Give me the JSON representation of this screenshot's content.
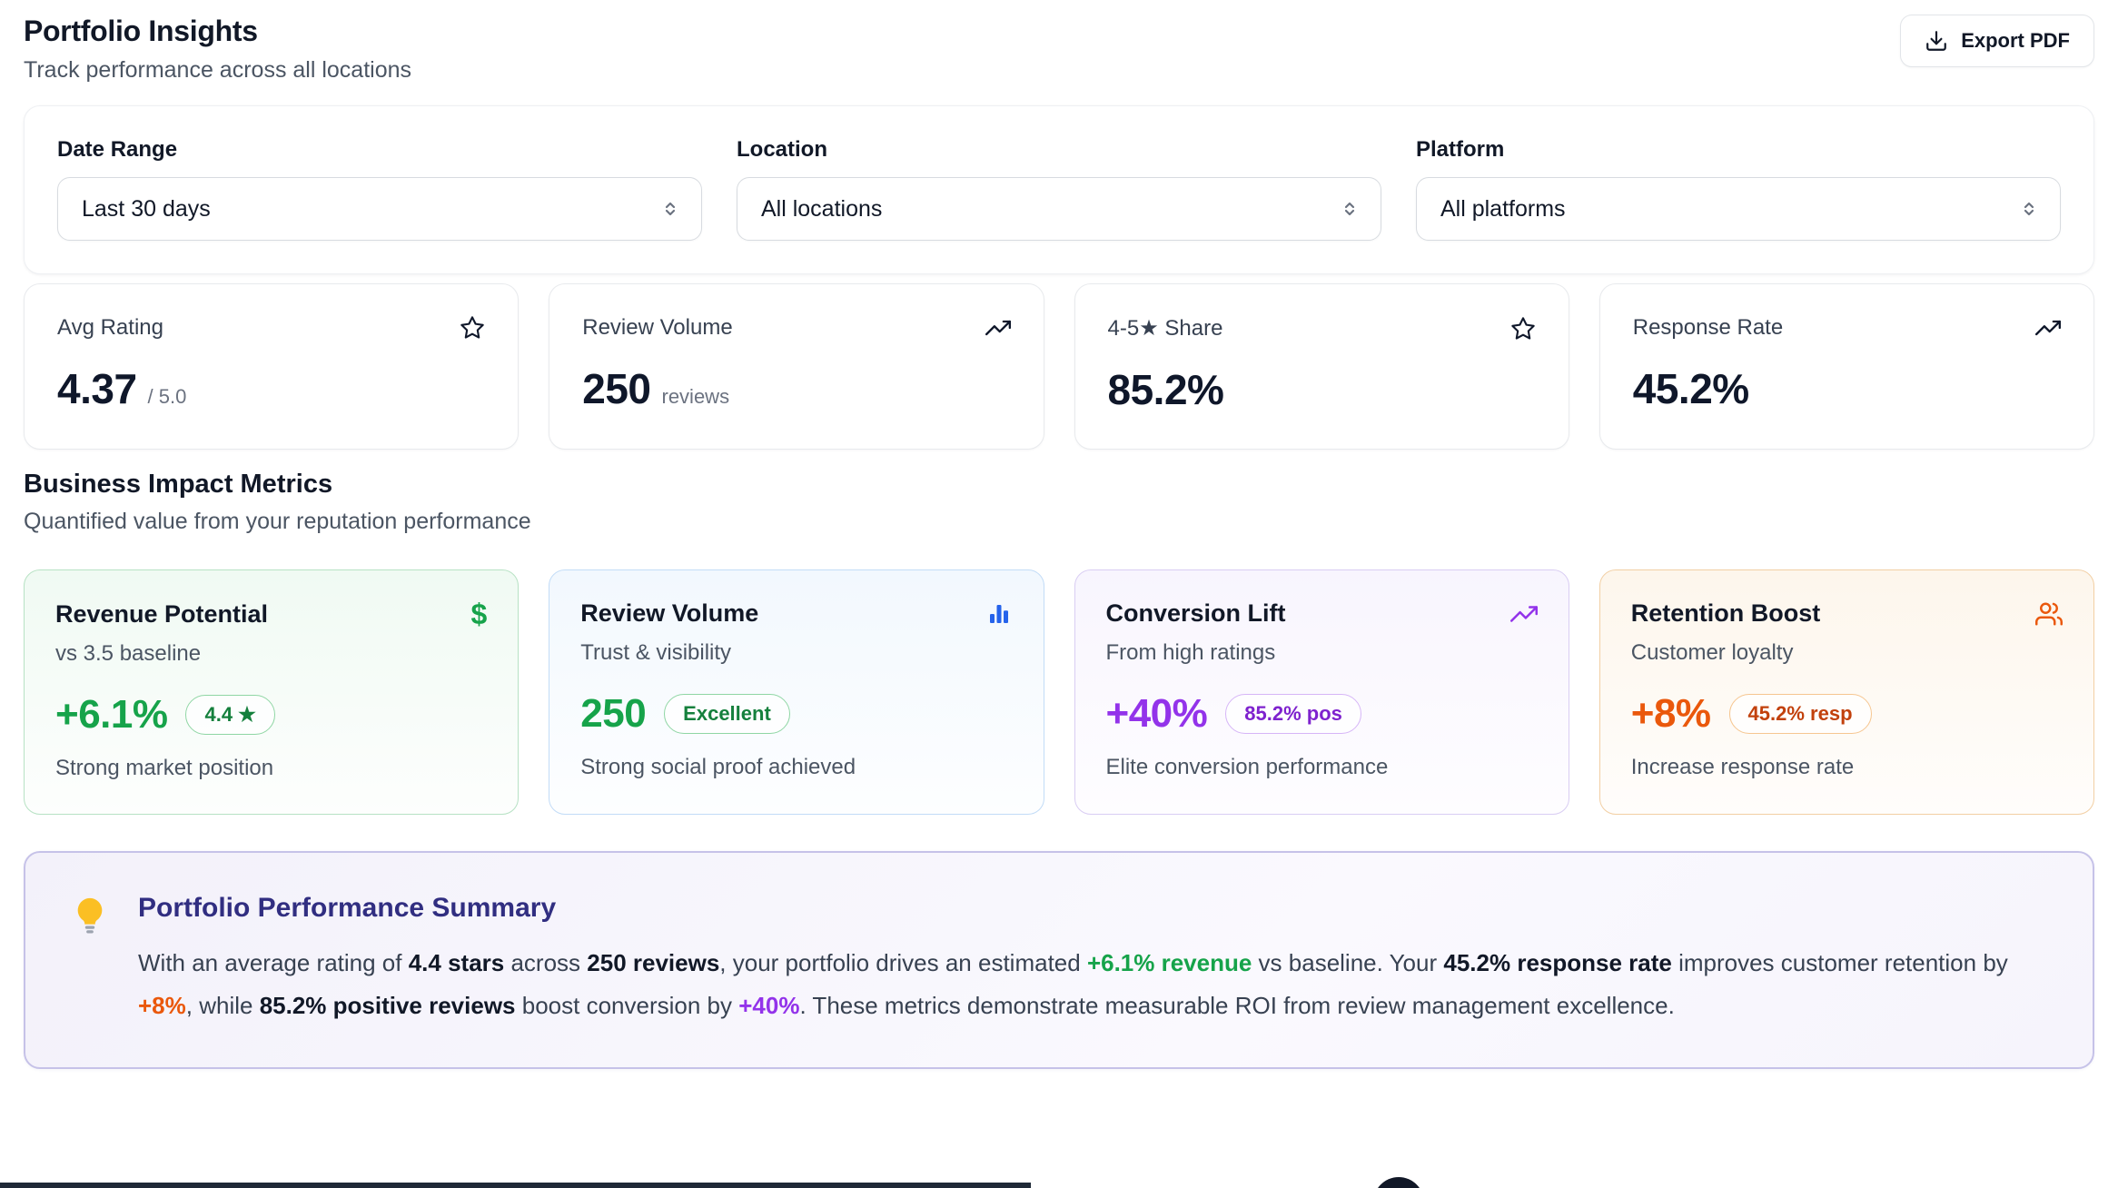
{
  "header": {
    "title": "Portfolio Insights",
    "subtitle": "Track performance across all locations",
    "export_button": "Export PDF",
    "export_icon": "download-icon"
  },
  "filters": [
    {
      "label": "Date Range",
      "value": "Last 30 days",
      "icon": "chevron-up-down-icon"
    },
    {
      "label": "Location",
      "value": "All locations",
      "icon": "chevron-up-down-icon"
    },
    {
      "label": "Platform",
      "value": "All platforms",
      "icon": "chevron-up-down-icon"
    }
  ],
  "stats": [
    {
      "label": "Avg Rating",
      "icon": "star-icon",
      "value": "4.37",
      "suffix": "/ 5.0"
    },
    {
      "label": "Review Volume",
      "icon": "trending-up-icon",
      "value": "250",
      "suffix": "reviews"
    },
    {
      "label": "4-5★ Share",
      "icon": "star-icon",
      "value": "85.2%",
      "suffix": ""
    },
    {
      "label": "Response Rate",
      "icon": "trending-up-icon",
      "value": "45.2%",
      "suffix": ""
    }
  ],
  "impact": {
    "title": "Business Impact Metrics",
    "subtitle": "Quantified value from your reputation performance",
    "cards": [
      {
        "title": "Revenue Potential",
        "icon": "dollar-icon",
        "subtitle": "vs 3.5 baseline",
        "value": "+6.1%",
        "badge": "4.4 ★",
        "footer": "Strong market position",
        "accent": "#16a34a"
      },
      {
        "title": "Review Volume",
        "icon": "bar-chart-icon",
        "subtitle": "Trust & visibility",
        "value": "250",
        "badge": "Excellent",
        "footer": "Strong social proof achieved",
        "accent": "#16a34a"
      },
      {
        "title": "Conversion Lift",
        "icon": "trending-up-icon",
        "subtitle": "From high ratings",
        "value": "+40%",
        "badge": "85.2% pos",
        "footer": "Elite conversion performance",
        "accent": "#9333ea"
      },
      {
        "title": "Retention Boost",
        "icon": "people-icon",
        "subtitle": "Customer loyalty",
        "value": "+8%",
        "badge": "45.2% resp",
        "footer": "Increase response rate",
        "accent": "#ea580c"
      }
    ]
  },
  "summary": {
    "icon": "lightbulb-icon",
    "title": "Portfolio Performance Summary",
    "segments": [
      {
        "text": "With an average rating of ",
        "emphasis": "normal"
      },
      {
        "text": "4.4 stars",
        "emphasis": "bold"
      },
      {
        "text": " across ",
        "emphasis": "normal"
      },
      {
        "text": "250 reviews",
        "emphasis": "bold"
      },
      {
        "text": ", your portfolio drives an estimated ",
        "emphasis": "normal"
      },
      {
        "text": "+6.1% revenue",
        "emphasis": "green"
      },
      {
        "text": " vs baseline. Your ",
        "emphasis": "normal"
      },
      {
        "text": "45.2% response rate",
        "emphasis": "bold"
      },
      {
        "text": " improves customer retention by ",
        "emphasis": "normal"
      },
      {
        "text": "+8%",
        "emphasis": "orange"
      },
      {
        "text": ", while ",
        "emphasis": "normal"
      },
      {
        "text": "85.2% positive reviews",
        "emphasis": "bold"
      },
      {
        "text": " boost conversion by ",
        "emphasis": "normal"
      },
      {
        "text": "+40%",
        "emphasis": "purple"
      },
      {
        "text": ". These metrics demonstrate measurable ROI from review management excellence.",
        "emphasis": "normal"
      }
    ]
  },
  "colors": {
    "green": "#16a34a",
    "blue": "#2563eb",
    "purple": "#9333ea",
    "orange": "#ea580c",
    "summary_title": "#312e81"
  }
}
